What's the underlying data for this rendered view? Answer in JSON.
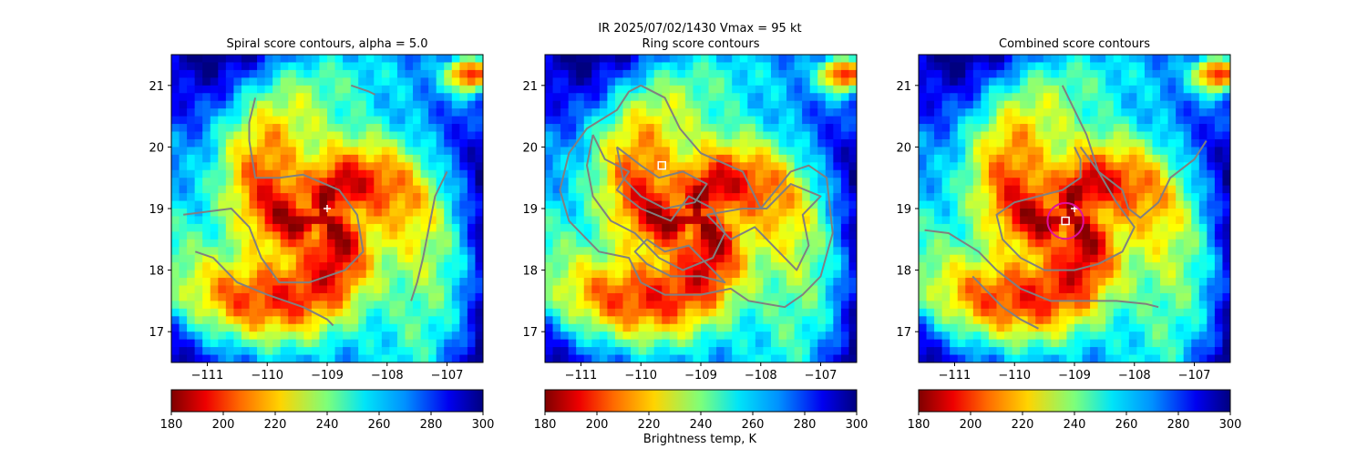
{
  "suptitle_line1": "IR  2025/07/02/1430    Vmax = 95 kt",
  "colorbar_label": "Brightness temp, K",
  "chart_data": [
    {
      "type": "heatmap",
      "title": "Spiral score contours, alpha =  5.0",
      "xlabel": "",
      "ylabel": "",
      "xlim": [
        -111.6,
        -106.4
      ],
      "ylim": [
        16.5,
        21.5
      ],
      "xticks": [
        -111,
        -110,
        -109,
        -108,
        -107
      ],
      "yticks": [
        17,
        18,
        19,
        20,
        21
      ],
      "xtick_labels": [
        "−111",
        "−110",
        "−109",
        "−108",
        "−107"
      ],
      "ytick_labels": [
        "17",
        "18",
        "19",
        "20",
        "21"
      ],
      "colorbar": {
        "range": [
          180,
          300
        ],
        "ticks": [
          180,
          200,
          220,
          240,
          260,
          280,
          300
        ],
        "colormap": "jet_r"
      },
      "markers": [
        {
          "kind": "plus",
          "x": -109.0,
          "y": 19.0,
          "color": "#ffffff"
        }
      ],
      "contours": [
        [
          [
            -110.2,
            20.8
          ],
          [
            -110.3,
            20.4
          ],
          [
            -110.3,
            20.1
          ],
          [
            -110.2,
            19.5
          ],
          [
            -109.8,
            19.5
          ],
          [
            -109.4,
            19.55
          ],
          [
            -108.8,
            19.3
          ],
          [
            -108.5,
            18.9
          ],
          [
            -108.4,
            18.3
          ],
          [
            -108.7,
            18.0
          ],
          [
            -109.3,
            17.8
          ],
          [
            -109.8,
            17.8
          ],
          [
            -110.1,
            18.2
          ],
          [
            -110.3,
            18.7
          ],
          [
            -110.6,
            19.0
          ],
          [
            -111.0,
            18.95
          ],
          [
            -111.4,
            18.9
          ]
        ],
        [
          [
            -111.2,
            18.3
          ],
          [
            -110.9,
            18.2
          ],
          [
            -110.5,
            17.8
          ],
          [
            -110.0,
            17.6
          ],
          [
            -109.4,
            17.4
          ],
          [
            -109.0,
            17.2
          ],
          [
            -108.9,
            17.1
          ]
        ],
        [
          [
            -107.0,
            19.6
          ],
          [
            -107.2,
            19.2
          ],
          [
            -107.3,
            18.7
          ],
          [
            -107.4,
            18.2
          ],
          [
            -107.5,
            17.8
          ],
          [
            -107.6,
            17.5
          ]
        ],
        [
          [
            -108.6,
            21.0
          ],
          [
            -108.3,
            20.9
          ],
          [
            -108.2,
            20.85
          ]
        ]
      ]
    },
    {
      "type": "heatmap",
      "title": "Ring score contours",
      "xlabel": "",
      "ylabel": "",
      "xlim": [
        -111.6,
        -106.4
      ],
      "ylim": [
        16.5,
        21.5
      ],
      "xticks": [
        -111,
        -110,
        -109,
        -108,
        -107
      ],
      "yticks": [
        17,
        18,
        19,
        20,
        21
      ],
      "xtick_labels": [
        "−111",
        "−110",
        "−109",
        "−108",
        "−107"
      ],
      "ytick_labels": [
        "17",
        "18",
        "19",
        "20",
        "21"
      ],
      "colorbar": {
        "range": [
          180,
          300
        ],
        "ticks": [
          180,
          200,
          220,
          240,
          260,
          280,
          300
        ],
        "colormap": "jet_r"
      },
      "markers": [
        {
          "kind": "square",
          "x": -109.65,
          "y": 19.7,
          "color": "#ffffff"
        }
      ],
      "contours": [
        [
          [
            -110.0,
            21.0
          ],
          [
            -109.6,
            20.8
          ],
          [
            -109.35,
            20.3
          ],
          [
            -109.0,
            19.9
          ],
          [
            -108.3,
            19.6
          ],
          [
            -108.0,
            19.0
          ],
          [
            -107.5,
            19.6
          ],
          [
            -107.2,
            19.7
          ],
          [
            -106.9,
            19.5
          ],
          [
            -106.8,
            18.6
          ],
          [
            -107.0,
            17.9
          ],
          [
            -107.3,
            17.6
          ],
          [
            -107.6,
            17.4
          ],
          [
            -108.2,
            17.5
          ],
          [
            -108.5,
            17.7
          ],
          [
            -109.0,
            17.6
          ],
          [
            -109.6,
            17.6
          ],
          [
            -110.0,
            17.8
          ],
          [
            -110.2,
            18.2
          ],
          [
            -110.7,
            18.3
          ],
          [
            -111.2,
            18.8
          ],
          [
            -111.35,
            19.3
          ],
          [
            -111.2,
            19.9
          ],
          [
            -110.9,
            20.3
          ],
          [
            -110.4,
            20.6
          ],
          [
            -110.2,
            20.9
          ],
          [
            -110.0,
            21.0
          ]
        ],
        [
          [
            -110.8,
            20.2
          ],
          [
            -110.6,
            19.8
          ],
          [
            -110.2,
            19.6
          ],
          [
            -110.4,
            19.3
          ],
          [
            -110.0,
            19.0
          ],
          [
            -109.5,
            18.8
          ],
          [
            -109.2,
            19.2
          ],
          [
            -108.8,
            19.0
          ],
          [
            -108.6,
            18.6
          ],
          [
            -108.8,
            18.2
          ],
          [
            -109.3,
            18.0
          ],
          [
            -109.7,
            18.2
          ],
          [
            -110.1,
            18.6
          ],
          [
            -110.5,
            18.8
          ],
          [
            -110.8,
            19.2
          ],
          [
            -110.9,
            19.7
          ],
          [
            -110.8,
            20.2
          ]
        ],
        [
          [
            -108.9,
            18.9
          ],
          [
            -108.5,
            18.5
          ],
          [
            -108.1,
            18.7
          ],
          [
            -107.7,
            18.3
          ],
          [
            -107.4,
            18.0
          ],
          [
            -107.2,
            18.4
          ],
          [
            -107.3,
            18.9
          ],
          [
            -107.0,
            19.2
          ],
          [
            -107.5,
            19.4
          ],
          [
            -107.9,
            19.0
          ],
          [
            -108.3,
            19.0
          ],
          [
            -108.9,
            18.9
          ]
        ],
        [
          [
            -110.4,
            20.0
          ],
          [
            -110.0,
            19.7
          ],
          [
            -109.7,
            19.5
          ],
          [
            -109.3,
            19.6
          ],
          [
            -108.9,
            19.4
          ],
          [
            -109.1,
            19.1
          ],
          [
            -109.6,
            19.0
          ],
          [
            -110.0,
            19.2
          ],
          [
            -110.3,
            19.5
          ],
          [
            -110.4,
            20.0
          ]
        ],
        [
          [
            -109.9,
            18.5
          ],
          [
            -109.6,
            18.3
          ],
          [
            -109.2,
            18.4
          ],
          [
            -108.9,
            18.1
          ],
          [
            -108.6,
            17.8
          ],
          [
            -109.0,
            17.9
          ],
          [
            -109.5,
            17.9
          ],
          [
            -109.9,
            18.1
          ],
          [
            -110.1,
            18.3
          ],
          [
            -109.9,
            18.5
          ]
        ]
      ]
    },
    {
      "type": "heatmap",
      "title": "Combined score contours",
      "xlabel": "",
      "ylabel": "",
      "xlim": [
        -111.6,
        -106.4
      ],
      "ylim": [
        16.5,
        21.5
      ],
      "xticks": [
        -111,
        -110,
        -109,
        -108,
        -107
      ],
      "yticks": [
        17,
        18,
        19,
        20,
        21
      ],
      "xtick_labels": [
        "−111",
        "−110",
        "−109",
        "−108",
        "−107"
      ],
      "ytick_labels": [
        "17",
        "18",
        "19",
        "20",
        "21"
      ],
      "colorbar": {
        "range": [
          180,
          300
        ],
        "ticks": [
          180,
          200,
          220,
          240,
          260,
          280,
          300
        ],
        "colormap": "jet_r"
      },
      "markers": [
        {
          "kind": "plus",
          "x": -109.0,
          "y": 19.0,
          "color": "#ffffff"
        },
        {
          "kind": "square",
          "x": -109.15,
          "y": 18.8,
          "color": "#ffffff"
        },
        {
          "kind": "circle",
          "x": -109.15,
          "y": 18.8,
          "r": 0.3,
          "color": "#e0109e"
        }
      ],
      "contours": [
        [
          [
            -109.0,
            20.0
          ],
          [
            -108.9,
            19.8
          ],
          [
            -108.9,
            19.5
          ],
          [
            -109.2,
            19.3
          ],
          [
            -109.6,
            19.2
          ],
          [
            -110.0,
            19.1
          ],
          [
            -110.3,
            18.9
          ],
          [
            -110.2,
            18.5
          ],
          [
            -109.9,
            18.2
          ],
          [
            -109.5,
            18.0
          ],
          [
            -109.0,
            18.0
          ],
          [
            -108.6,
            18.1
          ],
          [
            -108.2,
            18.3
          ],
          [
            -108.0,
            18.7
          ],
          [
            -108.3,
            19.1
          ],
          [
            -108.6,
            19.6
          ],
          [
            -108.8,
            20.2
          ],
          [
            -109.0,
            20.6
          ],
          [
            -109.2,
            21.0
          ]
        ],
        [
          [
            -111.5,
            18.65
          ],
          [
            -111.1,
            18.6
          ],
          [
            -110.6,
            18.3
          ],
          [
            -110.3,
            18.0
          ],
          [
            -109.9,
            17.7
          ],
          [
            -109.4,
            17.5
          ],
          [
            -108.9,
            17.5
          ],
          [
            -108.3,
            17.5
          ],
          [
            -107.8,
            17.45
          ],
          [
            -107.6,
            17.4
          ]
        ],
        [
          [
            -110.7,
            17.9
          ],
          [
            -110.5,
            17.7
          ],
          [
            -110.2,
            17.4
          ],
          [
            -109.9,
            17.2
          ],
          [
            -109.6,
            17.05
          ]
        ],
        [
          [
            -106.8,
            20.1
          ],
          [
            -107.0,
            19.8
          ],
          [
            -107.4,
            19.5
          ],
          [
            -107.6,
            19.1
          ],
          [
            -107.9,
            18.85
          ],
          [
            -108.1,
            19.0
          ],
          [
            -108.2,
            19.3
          ],
          [
            -108.6,
            19.6
          ],
          [
            -108.9,
            20.0
          ]
        ]
      ]
    }
  ]
}
